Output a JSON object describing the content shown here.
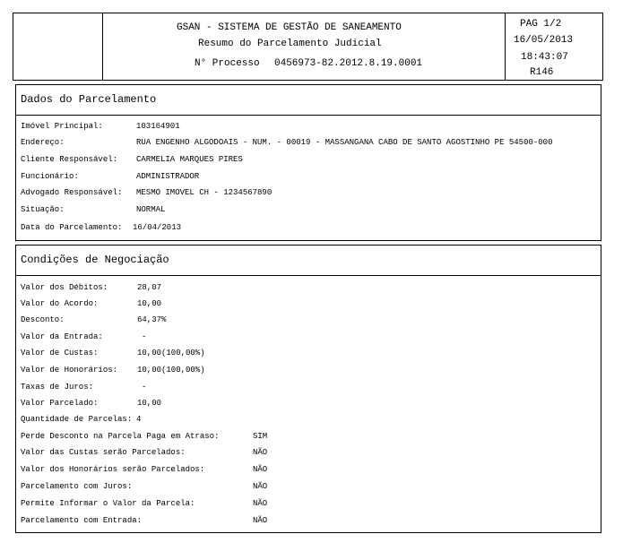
{
  "header": {
    "system": "GSAN - SISTEMA DE GESTÃO DE SANEAMENTO",
    "report_title": "Resumo do Parcelamento Judicial",
    "processo_label": "N° Processo",
    "processo_value": "0456973-82.2012.8.19.0001",
    "page": "PAG 1/2",
    "date": "16/05/2013",
    "time": "18:43:07",
    "report_code": "R146"
  },
  "dados": {
    "title": "Dados do Parcelamento",
    "rows": [
      {
        "label": "Imóvel Principal:",
        "value": "103164901"
      },
      {
        "label": "Endereço:",
        "value": "RUA ENGENHO ALGODOAIS - NUM. - 00019 - MASSANGANA CABO DE SANTO AGOSTINHO PE 54500-000"
      },
      {
        "label": "Cliente Responsável:",
        "value": "CARMELIA MARQUES PIRES"
      },
      {
        "label": "Funcionário:",
        "value": "ADMINISTRADOR"
      },
      {
        "label": "Advogado Responsável:",
        "value": "MESMO IMOVEL CH - 1234567890"
      },
      {
        "label": "Situação:",
        "value": "NORMAL"
      },
      {
        "label": "Data do Parcelamento:",
        "value": "16/04/2013"
      }
    ]
  },
  "condicoes": {
    "title": "Condições de Negociação",
    "rows": [
      {
        "label": "Valor dos Débitos:",
        "value": "28,07"
      },
      {
        "label": "Valor do Acordo:",
        "value": "10,00"
      },
      {
        "label": "Desconto:",
        "value": "64,37%"
      },
      {
        "label": "Valor da Entrada:",
        "value": "-"
      },
      {
        "label": "Valor de Custas:",
        "value": "10,00(100,00%)"
      },
      {
        "label": "Valor de Honorários:",
        "value": "10,00(100,00%)"
      },
      {
        "label": "Taxas de Juros:",
        "value": "-"
      },
      {
        "label": "Valor Parcelado:",
        "value": "10,00"
      },
      {
        "label": "Quantidade de Parcelas:",
        "value": "4"
      }
    ],
    "flags": [
      {
        "label": "Perde Desconto na Parcela Paga em Atraso:",
        "value": "SIM"
      },
      {
        "label": "Valor das Custas serão Parcelados:",
        "value": "NÃO"
      },
      {
        "label": "Valor dos Honorários serão Parcelados:",
        "value": "NÃO"
      },
      {
        "label": "Parcelamento com Juros:",
        "value": "NÃO"
      },
      {
        "label": "Permite Informar o Valor da Parcela:",
        "value": "NÃO"
      },
      {
        "label": "Parcelamento com Entrada:",
        "value": "NÃO"
      }
    ]
  }
}
